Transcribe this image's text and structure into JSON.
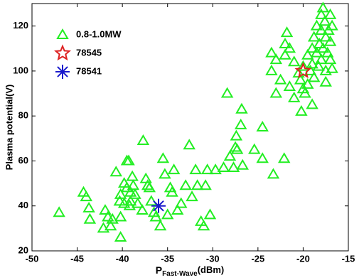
{
  "chart_data": {
    "type": "scatter",
    "xlabel": {
      "main": "P",
      "sub": "Fast-Wave",
      "unit": "(dBm)"
    },
    "ylabel": "Plasma potential(V)",
    "xlim": [
      -50,
      -15
    ],
    "xticks": [
      -50,
      -45,
      -40,
      -35,
      -30,
      -25,
      -20,
      -15
    ],
    "ylim": [
      20,
      130
    ],
    "yticks": [
      20,
      40,
      60,
      80,
      100,
      120
    ],
    "legend": "upper left",
    "series": [
      {
        "name": "0.8-1.0MW",
        "color": "#22ee22",
        "marker": "triangle",
        "x": [
          -47,
          -44.3,
          -44,
          -43.7,
          -43.6,
          -42.1,
          -41.9,
          -41.3,
          -41.1,
          -41.6,
          -40.7,
          -40.2,
          -40.2,
          -39.5,
          -39.3,
          -39.8,
          -39.5,
          -40.2,
          -40.3,
          -39.8,
          -39.1,
          -39.2,
          -38.9,
          -38.8,
          -39.1,
          -38.6,
          -38.3,
          -37.8,
          -37.7,
          -37.4,
          -37.2,
          -37,
          -36.8,
          -36.5,
          -36.3,
          -35.8,
          -35.5,
          -35.3,
          -35,
          -34.7,
          -34.5,
          -34.3,
          -33.9,
          -33.5,
          -33,
          -32.6,
          -32.3,
          -31.9,
          -31.7,
          -31.3,
          -31,
          -30.8,
          -30.6,
          -30.3,
          -29.7,
          -28.8,
          -28.4,
          -28.1,
          -27.7,
          -27.4,
          -27.5,
          -27.3,
          -26.9,
          -26.8,
          -26.7,
          -25.4,
          -24.5,
          -24.5,
          -23.3,
          -22.1,
          -23.5,
          -23,
          -22.5,
          -23,
          -22,
          -21.8,
          -21.5,
          -21,
          -21.5,
          -21,
          -20.5,
          -20.3,
          -20,
          -20,
          -19.8,
          -19.5,
          -19.5,
          -19.2,
          -19,
          -19,
          -19,
          -18.8,
          -18.8,
          -18.5,
          -18.5,
          -18.3,
          -18.2,
          -18,
          -18,
          -18,
          -17.8,
          -17.8,
          -17.6,
          -17.5,
          -17.5,
          -17.3,
          -17.2,
          -17,
          -17,
          -17,
          -16.8,
          -16.8,
          -17.5,
          -20.2,
          -22,
          -23.5
        ],
        "values": [
          37,
          46,
          44,
          39,
          34,
          30,
          38,
          31,
          34,
          35,
          55,
          35,
          26,
          60,
          60,
          50,
          48,
          45,
          42,
          41,
          42,
          40,
          53,
          49,
          46,
          45,
          41,
          38,
          69,
          52,
          49,
          48,
          42,
          37,
          35,
          31,
          61,
          54,
          36,
          48,
          46,
          56,
          38,
          41,
          49,
          67,
          44,
          56,
          49,
          33,
          31,
          49,
          56,
          36,
          56,
          57,
          90,
          62,
          57,
          71,
          66,
          65,
          76,
          83,
          58,
          65,
          75,
          61,
          54,
          61,
          100,
          105,
          96,
          90,
          112,
          117,
          110,
          104,
          93,
          88,
          99,
          96,
          102,
          92,
          90,
          94,
          107,
          100,
          110,
          103,
          85,
          97,
          115,
          120,
          108,
          102,
          112,
          125,
          118,
          105,
          128,
          110,
          122,
          115,
          100,
          108,
          118,
          113,
          105,
          125,
          120,
          101,
          95,
          82,
          107,
          108
        ]
      },
      {
        "name": "78545",
        "color": "#dd2222",
        "marker": "star",
        "x": [
          -20
        ],
        "values": [
          100
        ]
      },
      {
        "name": "78541",
        "color": "#1a1acc",
        "marker": "asterisk",
        "x": [
          -36
        ],
        "values": [
          40
        ]
      }
    ]
  }
}
